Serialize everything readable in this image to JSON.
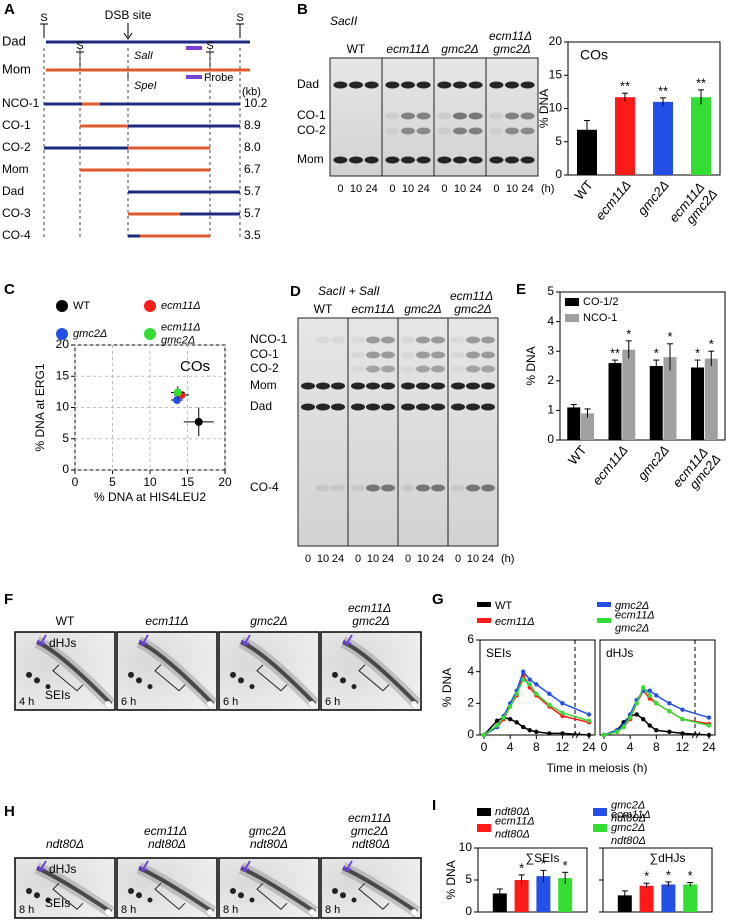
{
  "letters": [
    "A",
    "B",
    "C",
    "D",
    "E",
    "F",
    "G",
    "H",
    "I"
  ],
  "map": {
    "dad": {
      "label": "Dad",
      "color": "#1c2b7f"
    },
    "mom": {
      "label": "Mom",
      "color": "#e05a2b"
    },
    "site": "S",
    "dsb": "DSB site",
    "sal": "SalI",
    "spe": "SpeI",
    "probe": "Probe",
    "probe_color": "#7b3fd6",
    "unit": "(kb)",
    "rows": [
      {
        "label": "NCO-1",
        "size": "10.2",
        "color": "#000000"
      },
      {
        "label": "CO-1",
        "size": "8.9",
        "color": "#000000"
      },
      {
        "label": "CO-2",
        "size": "8.0",
        "color": "#000000"
      },
      {
        "label": "Mom",
        "size": "6.7",
        "color": "#e05a2b"
      },
      {
        "label": "Dad",
        "size": "5.7",
        "color": "#000000"
      },
      {
        "label": "CO-3",
        "size": "5.7",
        "color": "#000000"
      },
      {
        "label": "CO-4",
        "size": "3.5",
        "color": "#000000"
      }
    ]
  },
  "genotypes": [
    {
      "label": "WT",
      "color": "#000000"
    },
    {
      "label": "ecm11Δ",
      "color": "#ff1a1a"
    },
    {
      "label": "gmc2Δ",
      "color": "#2450e8"
    },
    {
      "label": "ecm11Δ gmc2Δ",
      "color": "#33dd33"
    }
  ],
  "ndt80_genotypes": [
    {
      "label": "ndt80Δ",
      "color": "#000000"
    },
    {
      "label": "ecm11Δ ndt80Δ",
      "color": "#ff1a1a"
    },
    {
      "label": "gmc2Δ ndt80Δ",
      "color": "#2450e8"
    },
    {
      "label": "ecm11Δ gmc2Δ ndt80Δ",
      "color": "#33dd33"
    }
  ],
  "gel_b": {
    "enzyme": "SacII",
    "bands": [
      {
        "label": "Dad",
        "color": "#1c2b7f"
      },
      {
        "label": "CO-1",
        "color": "#000000"
      },
      {
        "label": "CO-2",
        "color": "#000000"
      },
      {
        "label": "Mom",
        "color": "#e05a2b"
      }
    ],
    "times": [
      "0",
      "10",
      "24"
    ],
    "unit": "(h)"
  },
  "gel_d": {
    "enzyme": "SacII + SalI",
    "bands": [
      {
        "label": "NCO-1",
        "color": "#000000"
      },
      {
        "label": "CO-1",
        "color": "#000000"
      },
      {
        "label": "CO-2",
        "color": "#000000"
      },
      {
        "label": "Mom",
        "color": "#e05a2b"
      },
      {
        "label": "Dad",
        "color": "#1c2b7f"
      },
      {
        "label": "CO-4",
        "color": "#000000"
      }
    ],
    "times": [
      "0",
      "10",
      "24"
    ],
    "unit": "(h)"
  },
  "blot_f": {
    "times": [
      "4 h",
      "6 h",
      "6 h",
      "6 h"
    ],
    "dhj": "dHJs",
    "sei": "SEIs"
  },
  "blot_h": {
    "times": [
      "8 h",
      "8 h",
      "8 h",
      "8 h"
    ],
    "dhj": "dHJs",
    "sei": "SEIs"
  },
  "chart_data": [
    {
      "type": "bar",
      "annotation": "COs",
      "y_label": "% DNA",
      "categories": [
        "WT",
        "ecm11Δ",
        "gmc2Δ",
        "ecm11Δ gmc2Δ"
      ],
      "category_colors": [
        "#000000",
        "#ff1a1a",
        "#2450e8",
        "#33dd33"
      ],
      "series": [
        {
          "colors": [
            "#000000",
            "#ff1a1a",
            "#2450e8",
            "#33dd33"
          ],
          "values": [
            6.8,
            11.7,
            11.0,
            11.7
          ],
          "errors": [
            1.4,
            0.6,
            0.6,
            1.1
          ],
          "significance": [
            null,
            "**",
            "**",
            "**"
          ]
        }
      ],
      "ylim": [
        0,
        20
      ],
      "yticks": [
        0,
        5,
        10,
        15,
        20
      ]
    },
    {
      "type": "scatter",
      "annotation": "COs",
      "x_label": "% DNA at HIS4LEU2",
      "y_label": "% DNA at ERG1",
      "series": [
        {
          "name": "WT",
          "color": "#000000",
          "x": [
            16.5
          ],
          "values": [
            7.7
          ],
          "x_errors": [
            2.0
          ],
          "errors": [
            2.3
          ]
        },
        {
          "name": "ecm11Δ",
          "color": "#ff1a1a",
          "x": [
            14.2
          ],
          "values": [
            12.0
          ],
          "x_errors": [
            1.0
          ],
          "errors": [
            0.6
          ]
        },
        {
          "name": "gmc2Δ",
          "color": "#2450e8",
          "x": [
            13.6
          ],
          "values": [
            11.2
          ],
          "x_errors": [
            0.8
          ],
          "errors": [
            0.6
          ]
        },
        {
          "name": "ecm11Δ gmc2Δ",
          "color": "#33dd33",
          "x": [
            13.7
          ],
          "values": [
            12.4
          ],
          "x_errors": [
            0.9
          ],
          "errors": [
            1.0
          ]
        }
      ],
      "xlim": [
        0,
        20
      ],
      "xticks": [
        0,
        5,
        10,
        15,
        20
      ],
      "ylim": [
        0,
        20
      ],
      "yticks": [
        0,
        5,
        10,
        15,
        20
      ],
      "grid": true,
      "legend": "top"
    },
    {
      "type": "bar",
      "y_label": "% DNA",
      "categories": [
        "WT",
        "ecm11Δ",
        "gmc2Δ",
        "ecm11Δ gmc2Δ"
      ],
      "category_colors": [
        "#000000",
        "#ff1a1a",
        "#2450e8",
        "#33dd33"
      ],
      "series": [
        {
          "name": "CO-1/2",
          "color": "#000000",
          "values": [
            1.1,
            2.6,
            2.5,
            2.45
          ],
          "errors": [
            0.1,
            0.1,
            0.2,
            0.25
          ],
          "significance": [
            null,
            "**",
            "*",
            "*"
          ]
        },
        {
          "name": "NCO-1",
          "color": "#a0a0a0",
          "values": [
            0.9,
            3.05,
            2.8,
            2.75
          ],
          "errors": [
            0.15,
            0.3,
            0.45,
            0.25
          ],
          "significance": [
            null,
            "*",
            "*",
            "*"
          ]
        }
      ],
      "ylim": [
        0,
        5
      ],
      "yticks": [
        0,
        1,
        2,
        3,
        4,
        5
      ],
      "legend": "upper left"
    },
    {
      "type": "line",
      "title": "SEIs",
      "x_label": "Time in meiosis (h)",
      "y_label": "% DNA",
      "x": [
        0,
        2,
        3,
        4,
        5,
        6,
        7,
        8,
        10,
        12,
        24
      ],
      "series": [
        {
          "name": "WT",
          "color": "#000000",
          "values": [
            0,
            0.9,
            1.1,
            1.0,
            0.8,
            0.5,
            0.3,
            0.2,
            0.1,
            0.1,
            0
          ]
        },
        {
          "name": "ecm11Δ",
          "color": "#ff1a1a",
          "values": [
            0,
            0.5,
            1.0,
            1.8,
            2.5,
            3.8,
            3.0,
            2.5,
            1.8,
            1.2,
            0.8
          ]
        },
        {
          "name": "gmc2Δ",
          "color": "#2450e8",
          "values": [
            0,
            0.5,
            1.2,
            2.0,
            2.8,
            4.0,
            3.5,
            3.2,
            2.6,
            2.0,
            1.3
          ]
        },
        {
          "name": "ecm11Δ gmc2Δ",
          "color": "#33dd33",
          "values": [
            0,
            0.6,
            1.1,
            1.8,
            2.6,
            3.5,
            3.2,
            2.6,
            1.9,
            1.4,
            0.9
          ]
        }
      ],
      "xlim": [
        0,
        24
      ],
      "xticks": [
        0,
        4,
        8,
        12,
        24
      ],
      "x_break": 13,
      "ylim": [
        0,
        6
      ],
      "yticks": [
        0,
        2,
        4,
        6
      ],
      "legend": "top"
    },
    {
      "type": "line",
      "title": "dHJs",
      "x": [
        0,
        2,
        3,
        4,
        5,
        6,
        7,
        8,
        10,
        12,
        24
      ],
      "series": [
        {
          "color": "#000000",
          "values": [
            0,
            0.3,
            0.8,
            1.2,
            1.3,
            1.0,
            0.6,
            0.3,
            0.2,
            0.1,
            0
          ]
        },
        {
          "color": "#ff1a1a",
          "values": [
            0,
            0.2,
            0.5,
            1.0,
            2.0,
            2.8,
            2.3,
            2.0,
            1.5,
            1.0,
            0.7
          ]
        },
        {
          "color": "#2450e8",
          "values": [
            0,
            0.3,
            0.6,
            1.3,
            2.2,
            2.8,
            2.8,
            2.5,
            2.0,
            1.6,
            1.1
          ]
        },
        {
          "color": "#33dd33",
          "values": [
            0,
            0.2,
            0.5,
            1.1,
            2.0,
            3.0,
            2.5,
            2.0,
            1.5,
            1.0,
            0.6
          ]
        }
      ],
      "xlim": [
        0,
        24
      ],
      "xticks": [
        0,
        4,
        8,
        12,
        24
      ],
      "x_break": 13,
      "ylim": [
        0,
        6
      ]
    },
    {
      "type": "bar",
      "y_label": "% DNA",
      "categories": [
        "∑SEIs",
        "∑dHJs"
      ],
      "series": [
        {
          "name": "ndt80Δ",
          "color": "#000000",
          "values": [
            2.9,
            2.6
          ],
          "errors": [
            0.7,
            0.7
          ],
          "significance": [
            null,
            null
          ]
        },
        {
          "name": "ecm11Δ ndt80Δ",
          "color": "#ff1a1a",
          "values": [
            5.0,
            4.1
          ],
          "errors": [
            0.8,
            0.4
          ],
          "significance": [
            "*",
            "*"
          ]
        },
        {
          "name": "gmc2Δ ndt80Δ",
          "color": "#2450e8",
          "values": [
            5.6,
            4.3
          ],
          "errors": [
            0.9,
            0.4
          ],
          "significance": [
            "*",
            "*"
          ]
        },
        {
          "name": "ecm11Δ gmc2Δ ndt80Δ",
          "color": "#33dd33",
          "values": [
            5.3,
            4.3
          ],
          "errors": [
            0.9,
            0.3
          ],
          "significance": [
            "*",
            "*"
          ]
        }
      ],
      "ylim": [
        0,
        10
      ],
      "yticks": [
        0,
        5,
        10
      ],
      "legend": "top"
    }
  ]
}
